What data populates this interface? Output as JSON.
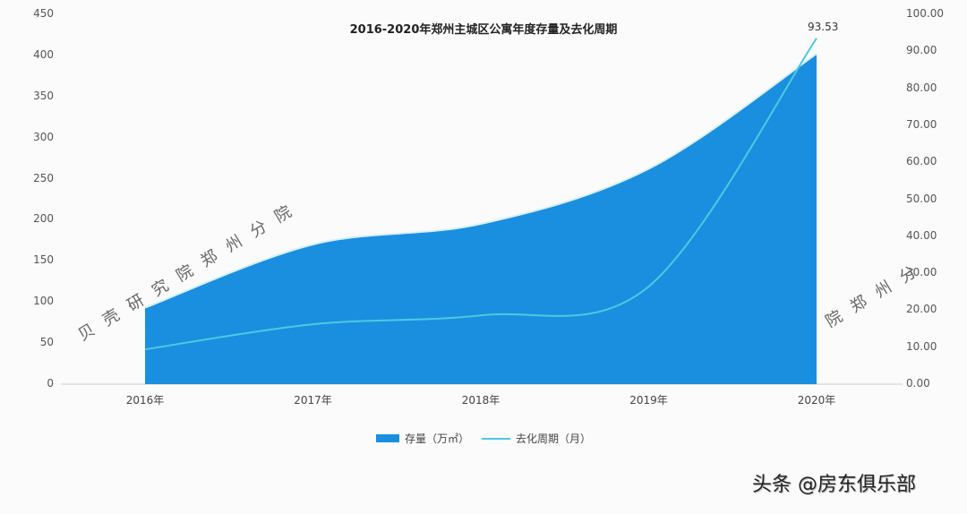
{
  "chart_data": {
    "type": "area+line",
    "title": "2016-2020年郑州主城区公寓年度存量及去化周期",
    "categories": [
      "2016年",
      "2017年",
      "2018年",
      "2019年",
      "2020年"
    ],
    "series": [
      {
        "name": "存量（万㎡）",
        "type": "area",
        "axis": "left",
        "color": "#1a8fe0",
        "values": [
          93,
          170,
          195,
          262,
          402
        ]
      },
      {
        "name": "去化周期（月）",
        "type": "line",
        "axis": "right",
        "color": "#4fc8e0",
        "values": [
          9.4,
          16.2,
          18.6,
          26.4,
          93.53
        ]
      }
    ],
    "data_labels": [
      {
        "series": "去化周期（月）",
        "category": "2020年",
        "text": "93.53"
      }
    ],
    "left_axis": {
      "ylim": [
        0,
        450
      ],
      "ticks": [
        "0",
        "50",
        "100",
        "150",
        "200",
        "250",
        "300",
        "350",
        "400",
        "450"
      ]
    },
    "right_axis": {
      "ylim": [
        0,
        100
      ],
      "ticks": [
        "0.00",
        "10.00",
        "20.00",
        "30.00",
        "40.00",
        "50.00",
        "60.00",
        "70.00",
        "80.00",
        "90.00",
        "100.00"
      ]
    },
    "xlabel": "",
    "ylabel": "",
    "legend_position": "bottom",
    "grid": false
  },
  "watermark": {
    "main": "贝壳研究院郑州分院",
    "right": "院郑州分"
  },
  "footer": "头条 @房东俱乐部"
}
